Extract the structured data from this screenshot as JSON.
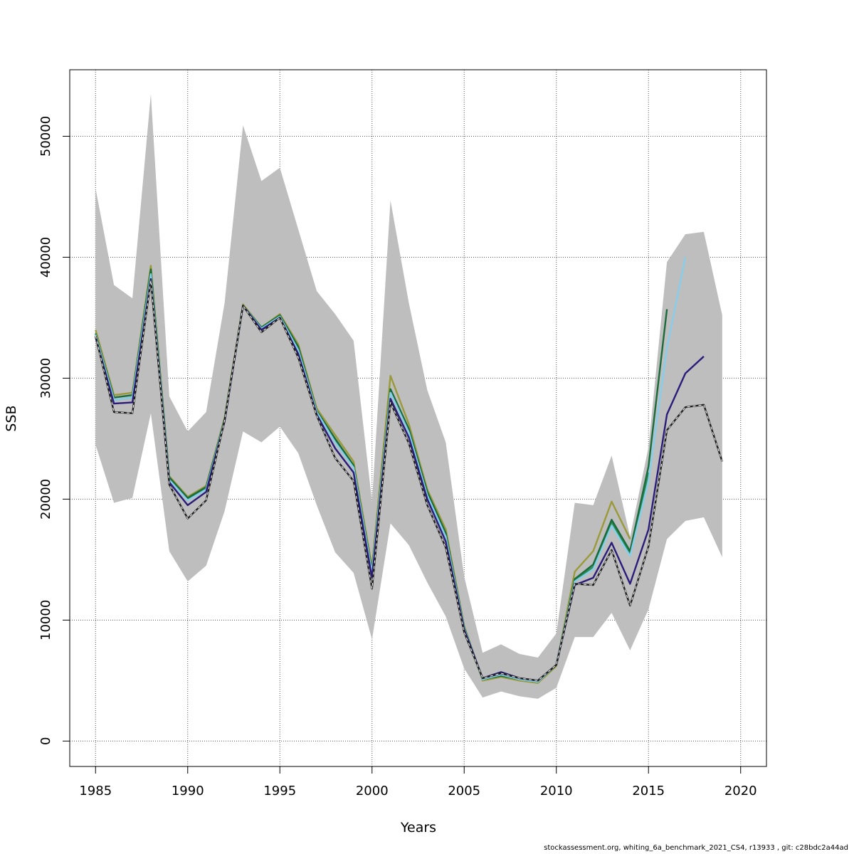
{
  "footer_text": "stockassessment.org, whiting_6a_benchmark_2021_CS4, r13933 , git: c28bdc2a44ad",
  "chart_data": {
    "type": "line",
    "title": "",
    "xlabel": "Years",
    "ylabel": "SSB",
    "xlim": [
      1983.6,
      2021.4
    ],
    "ylim": [
      -2100,
      55500
    ],
    "xticks": [
      1985,
      1990,
      1995,
      2000,
      2005,
      2010,
      2015,
      2020
    ],
    "yticks": [
      0,
      10000,
      20000,
      30000,
      40000,
      50000
    ],
    "grid": true,
    "colors": {
      "band": "#bebebe",
      "base": "#222222",
      "series": [
        "#2b1b7a",
        "#87ceeb",
        "#1b6b3a",
        "#2a8f5a",
        "#9a9a3a"
      ]
    },
    "confidence_band": {
      "x": [
        1985,
        1986,
        1987,
        1988,
        1989,
        1990,
        1991,
        1992,
        1993,
        1994,
        1995,
        1996,
        1997,
        1998,
        1999,
        2000,
        2001,
        2002,
        2003,
        2004,
        2005,
        2006,
        2007,
        2008,
        2009,
        2010,
        2011,
        2012,
        2013,
        2014,
        2015,
        2016,
        2017,
        2018,
        2019
      ],
      "lower": [
        24500,
        19700,
        20100,
        27100,
        15700,
        13200,
        14500,
        19000,
        25600,
        24700,
        26000,
        23800,
        19500,
        15600,
        13900,
        8400,
        18000,
        16200,
        13100,
        10300,
        6000,
        3600,
        4100,
        3700,
        3500,
        4400,
        8600,
        8600,
        10600,
        7500,
        10900,
        16700,
        18200,
        18500,
        15200
      ],
      "upper": [
        45700,
        37700,
        36600,
        53500,
        28500,
        25600,
        27200,
        36200,
        50900,
        46300,
        47400,
        42300,
        37200,
        35300,
        33100,
        19800,
        44700,
        36200,
        29000,
        24700,
        13600,
        7300,
        8000,
        7200,
        6900,
        8900,
        19700,
        19500,
        23600,
        16900,
        24300,
        39600,
        41900,
        42100,
        35200
      ]
    },
    "series": [
      {
        "name": "",
        "x": [
          1985,
          1986,
          1987,
          1988,
          1989,
          1990,
          1991,
          1992,
          1993,
          1994,
          1995,
          1996,
          1997,
          1998,
          1999,
          2000,
          2001,
          2002,
          2003,
          2004,
          2005,
          2006,
          2007,
          2008,
          2009,
          2010,
          2011,
          2012,
          2013,
          2014,
          2015,
          2016,
          2017,
          2018,
          2019
        ],
        "values": [
          33500,
          27200,
          27100,
          38100,
          21200,
          18400,
          19900,
          26500,
          36000,
          33800,
          35000,
          31700,
          26900,
          23400,
          21500,
          12600,
          28000,
          24600,
          19500,
          16000,
          9000,
          5200,
          5600,
          5200,
          5000,
          6300,
          13000,
          12900,
          15800,
          11200,
          16100,
          25700,
          27600,
          27800,
          23100
        ]
      },
      {
        "name": "",
        "x": [
          1985,
          1986,
          1987,
          1988,
          1989,
          1990,
          1991,
          1992,
          1993,
          1994,
          1995,
          1996,
          1997,
          1998,
          1999,
          2000,
          2001,
          2002,
          2003,
          2004,
          2005,
          2006,
          2007,
          2008,
          2009,
          2010,
          2011,
          2012,
          2013,
          2014,
          2015,
          2016,
          2017,
          2018
        ],
        "values": [
          33400,
          27900,
          28000,
          38200,
          21400,
          19500,
          20600,
          26400,
          36000,
          34000,
          35000,
          32000,
          27000,
          24200,
          22200,
          13500,
          28300,
          25100,
          20000,
          16500,
          9200,
          5200,
          5700,
          5200,
          5000,
          6300,
          12900,
          13500,
          16400,
          13000,
          17500,
          27000,
          30400,
          31800
        ]
      },
      {
        "name": "",
        "x": [
          1985,
          1986,
          1987,
          1988,
          1989,
          1990,
          1991,
          1992,
          1993,
          1994,
          1995,
          1996,
          1997,
          1998,
          1999,
          2000,
          2001,
          2002,
          2003,
          2004,
          2005,
          2006,
          2007,
          2008,
          2009,
          2010,
          2011,
          2012,
          2013,
          2014,
          2015,
          2016,
          2017
        ],
        "values": [
          33600,
          28200,
          28400,
          38600,
          21600,
          19900,
          20800,
          26500,
          36000,
          34100,
          35100,
          32300,
          27200,
          24700,
          22600,
          13900,
          28800,
          25500,
          20300,
          16900,
          9300,
          5100,
          5500,
          5100,
          4900,
          6300,
          13200,
          14200,
          17800,
          15300,
          21500,
          32500,
          40000
        ]
      },
      {
        "name": "",
        "x": [
          1985,
          1986,
          1987,
          1988,
          1989,
          1990,
          1991,
          1992,
          1993,
          1994,
          1995,
          1996,
          1997,
          1998,
          1999,
          2000,
          2001,
          2002,
          2003,
          2004,
          2005,
          2006,
          2007,
          2008,
          2009,
          2010,
          2011,
          2012,
          2013,
          2014,
          2015,
          2016
        ],
        "values": [
          33700,
          28400,
          28600,
          39000,
          21800,
          20100,
          21000,
          26600,
          36000,
          34200,
          35200,
          32600,
          27300,
          25000,
          22800,
          14100,
          29100,
          25800,
          20600,
          17200,
          9400,
          5100,
          5400,
          5100,
          4900,
          6300,
          13400,
          14600,
          18300,
          15700,
          22700,
          35700
        ]
      },
      {
        "name": "",
        "x": [
          1985,
          1986,
          1987,
          1988,
          1989,
          1990,
          1991,
          1992,
          1993,
          1994,
          1995,
          1996,
          1997,
          1998,
          1999,
          2000,
          2001,
          2002,
          2003,
          2004,
          2005,
          2006,
          2007,
          2008,
          2009,
          2010,
          2011,
          2012,
          2013,
          2014,
          2015
        ],
        "values": [
          33600,
          28200,
          28400,
          38900,
          21600,
          20000,
          20900,
          26500,
          36000,
          34100,
          35100,
          32400,
          27200,
          24800,
          22700,
          14000,
          28900,
          25600,
          20400,
          17000,
          9300,
          5100,
          5500,
          5100,
          4900,
          6300,
          13300,
          14400,
          18100,
          15500,
          22200
        ]
      },
      {
        "name": "",
        "x": [
          1985,
          1986,
          1987,
          1988,
          1989,
          1990,
          1991,
          1992,
          1993,
          1994,
          1995,
          1996,
          1997,
          1998,
          1999,
          2000,
          2001,
          2002,
          2003,
          2004,
          2005,
          2006,
          2007,
          2008,
          2009,
          2010,
          2011,
          2012,
          2013,
          2014
        ],
        "values": [
          34000,
          28600,
          28800,
          39300,
          21900,
          20200,
          21100,
          26700,
          36100,
          34200,
          35300,
          32800,
          27500,
          25300,
          23100,
          14400,
          30200,
          26200,
          20800,
          17500,
          9500,
          5000,
          5300,
          5000,
          4800,
          6200,
          14000,
          15700,
          19800,
          16700
        ]
      }
    ]
  }
}
